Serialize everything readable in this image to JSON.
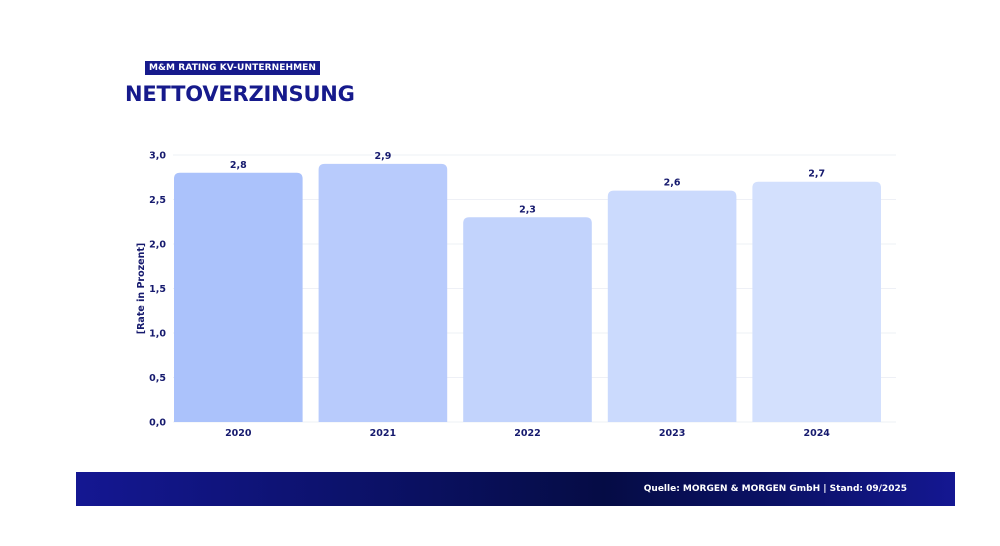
{
  "header": {
    "badge": "M&M RATING KV-UNTERNEHMEN",
    "title": "NETTOVERZINSUNG"
  },
  "footer": {
    "source": "Quelle: MORGEN & MORGEN GmbH | Stand: 09/2025"
  },
  "chart_data": {
    "type": "bar",
    "categories": [
      "2020",
      "2021",
      "2022",
      "2023",
      "2024"
    ],
    "values": [
      2.8,
      2.9,
      2.3,
      2.6,
      2.7
    ],
    "value_labels": [
      "2,8",
      "2,9",
      "2,3",
      "2,6",
      "2,7"
    ],
    "ylabel": "[Rate in Prozent]",
    "xlabel": "",
    "ylim": [
      0,
      3
    ],
    "yticks": [
      0,
      0.5,
      1,
      1.5,
      2,
      2.5,
      3
    ],
    "ytick_labels": [
      "0,0",
      "0,5",
      "1,0",
      "1,5",
      "2,0",
      "2,5",
      "3,0"
    ],
    "grid": true,
    "bar_colors": [
      "#abc2fb",
      "#b8cbfc",
      "#c2d3fc",
      "#cbdafd",
      "#d3e0fd"
    ],
    "text_color": "#161a6e",
    "accent": "#161a8c"
  }
}
